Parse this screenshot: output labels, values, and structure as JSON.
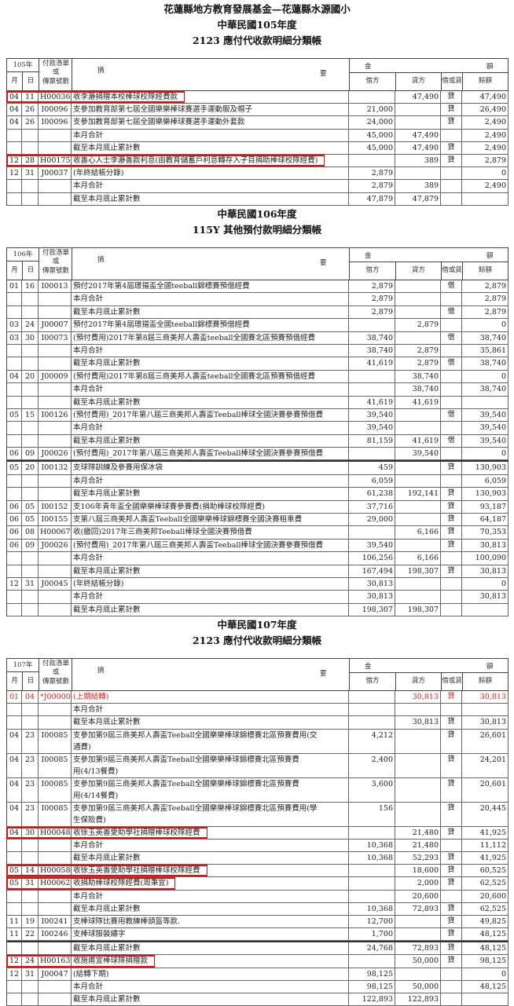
{
  "page_title": "花蓮縣地方教育發展基金—花蓮縣水源國小",
  "highlight_color": "#e01010",
  "header": {
    "voucher_line1": "付款憑單",
    "voucher_line2": "或",
    "voucher_line3": "傳票號數",
    "month": "月",
    "day": "日",
    "desc_a": "摘",
    "desc_b": "要",
    "amount_a": "金",
    "amount_b": "額",
    "debit": "借方",
    "credit": "貸方",
    "dc": "借或貸",
    "balance": "餘額"
  },
  "sections": [
    {
      "year_title": "中華民國105年度",
      "ledger_title": "2123 應付代收款明細分類帳",
      "year_label": "105年",
      "rows": [
        {
          "m": "04",
          "d": "11",
          "v": "H00036",
          "desc": "收李瀞捐贈本校棒球校隊經費款",
          "debit": "",
          "credit": "47,490",
          "dc": "貸",
          "bal": "47,490",
          "hl": true
        },
        {
          "m": "04",
          "d": "26",
          "v": "I00096",
          "desc": "支參加教育部第七屆全國樂樂棒球賽選手運動服及帽子",
          "debit": "21,000",
          "credit": "",
          "dc": "貸",
          "bal": "26,490"
        },
        {
          "m": "04",
          "d": "26",
          "v": "I00096",
          "desc": "支參加教育部第七屆全國樂樂棒球賽選手運動外套款",
          "debit": "24,000",
          "credit": "",
          "dc": "貸",
          "bal": "2,490"
        },
        {
          "m": "",
          "d": "",
          "v": "",
          "desc": "本月合計",
          "debit": "45,000",
          "credit": "47,490",
          "dc": "",
          "bal": "2,490"
        },
        {
          "m": "",
          "d": "",
          "v": "",
          "desc": "截至本月底止累計數",
          "debit": "45,000",
          "credit": "47,490",
          "dc": "貸",
          "bal": "2,490"
        },
        {
          "m": "12",
          "d": "28",
          "v": "H00175",
          "desc": "收善心人士李瀞善款利息(由教育儲蓄戶利息轉存入子目捐助棒球校隊經費)",
          "debit": "",
          "credit": "389",
          "dc": "貸",
          "bal": "2,879",
          "hl": true
        },
        {
          "m": "12",
          "d": "31",
          "v": "J00037",
          "desc": "(年終結帳分錄)",
          "debit": "2,879",
          "credit": "",
          "dc": "",
          "bal": "0"
        },
        {
          "m": "",
          "d": "",
          "v": "",
          "desc": "本月合計",
          "debit": "2,879",
          "credit": "389",
          "dc": "",
          "bal": "2,490"
        },
        {
          "m": "",
          "d": "",
          "v": "",
          "desc": "截至本月底止累計數",
          "debit": "47,879",
          "credit": "47,879",
          "dc": "",
          "bal": ""
        }
      ]
    },
    {
      "year_title": "中華民國106年度",
      "ledger_title": "115Y 其他預付款明細分類帳",
      "year_label": "106年",
      "rows": [
        {
          "m": "01",
          "d": "16",
          "v": "I00013",
          "desc": "預付2017年第4屆璟揚盃全國teeball錦標賽預借經費",
          "debit": "2,879",
          "credit": "",
          "dc": "借",
          "bal": "2,879"
        },
        {
          "m": "",
          "d": "",
          "v": "",
          "desc": "本月合計",
          "debit": "2,879",
          "credit": "",
          "dc": "",
          "bal": "2,879"
        },
        {
          "m": "",
          "d": "",
          "v": "",
          "desc": "截至本月底止累計數",
          "debit": "2,879",
          "credit": "",
          "dc": "借",
          "bal": "2,879"
        },
        {
          "m": "03",
          "d": "24",
          "v": "J00007",
          "desc": "預付2017年第4屆璟揚盃全國teeball錦標賽預借經費",
          "debit": "",
          "credit": "2,879",
          "dc": "",
          "bal": "0"
        },
        {
          "m": "03",
          "d": "30",
          "v": "I00073",
          "desc": "(預付費用)2017年第8屆三商美邦人壽盃teeball全國賽北區預賽預借經費",
          "debit": "38,740",
          "credit": "",
          "dc": "借",
          "bal": "38,740"
        },
        {
          "m": "",
          "d": "",
          "v": "",
          "desc": "本月合計",
          "debit": "38,740",
          "credit": "2,879",
          "dc": "",
          "bal": "35,861"
        },
        {
          "m": "",
          "d": "",
          "v": "",
          "desc": "截至本月底止累計數",
          "debit": "41,619",
          "credit": "2,879",
          "dc": "借",
          "bal": "38,740"
        },
        {
          "m": "04",
          "d": "20",
          "v": "J00009",
          "desc": "(預付費用)2017年第8屆三商美邦人壽盃teeball全國賽北區預賽預借經費",
          "debit": "",
          "credit": "38,740",
          "dc": "",
          "bal": "0"
        },
        {
          "m": "",
          "d": "",
          "v": "",
          "desc": "本月合計",
          "debit": "",
          "credit": "38,740",
          "dc": "",
          "bal": "38,740"
        },
        {
          "m": "",
          "d": "",
          "v": "",
          "desc": "截至本月底止累計數",
          "debit": "41,619",
          "credit": "41,619",
          "dc": "",
          "bal": ""
        },
        {
          "m": "05",
          "d": "15",
          "v": "I00126",
          "desc": "(預付費用)_2017年第八屆三商美邦人壽盃Teeball棒球全國決賽參賽預借費",
          "debit": "39,540",
          "credit": "",
          "dc": "借",
          "bal": "39,540"
        },
        {
          "m": "",
          "d": "",
          "v": "",
          "desc": "本月合計",
          "debit": "39,540",
          "credit": "",
          "dc": "",
          "bal": "39,540"
        },
        {
          "m": "",
          "d": "",
          "v": "",
          "desc": "截至本月底止累計數",
          "debit": "81,159",
          "credit": "41,619",
          "dc": "借",
          "bal": "39,540"
        },
        {
          "m": "06",
          "d": "09",
          "v": "J00026",
          "desc": "(預付費用)_2017年第八屆三商美邦人壽盃Teeball棒球全國決賽參賽預借費",
          "debit": "",
          "credit": "39,540",
          "dc": "",
          "bal": "0"
        },
        {
          "m": "05",
          "d": "20",
          "v": "I00132",
          "desc": "支球隊訓練及參賽用保冰袋",
          "debit": "459",
          "credit": "",
          "dc": "貸",
          "bal": "130,903",
          "brk": true
        },
        {
          "m": "",
          "d": "",
          "v": "",
          "desc": "本月合計",
          "debit": "6,059",
          "credit": "",
          "dc": "",
          "bal": "6,059"
        },
        {
          "m": "",
          "d": "",
          "v": "",
          "desc": "截至本月底止累計數",
          "debit": "61,238",
          "credit": "192,141",
          "dc": "貸",
          "bal": "130,903"
        },
        {
          "m": "06",
          "d": "05",
          "v": "I00152",
          "desc": "支106年青年盃全國樂樂棒球賽參賽費(捐助棒球校隊經費)",
          "debit": "37,716",
          "credit": "",
          "dc": "貸",
          "bal": "93,187"
        },
        {
          "m": "06",
          "d": "05",
          "v": "I00155",
          "desc": "支第八屆三商美邦人壽盃Teeball全國樂樂棒球錦標賽全國決賽租車費",
          "debit": "29,000",
          "credit": "",
          "dc": "貸",
          "bal": "64,187"
        },
        {
          "m": "06",
          "d": "08",
          "v": "H00067",
          "desc": "收(繳回)2017年三商美邦Teeball棒球全國決賽預借費",
          "debit": "",
          "credit": "6,166",
          "dc": "貸",
          "bal": "70,353"
        },
        {
          "m": "06",
          "d": "09",
          "v": "J00026",
          "desc": "(預付費用)_2017年第八屆三商美邦人壽盃Teeball棒球全國決賽參賽預借費",
          "debit": "39,540",
          "credit": "",
          "dc": "貸",
          "bal": "30,813"
        },
        {
          "m": "",
          "d": "",
          "v": "",
          "desc": "本月合計",
          "debit": "106,256",
          "credit": "6,166",
          "dc": "",
          "bal": "100,090"
        },
        {
          "m": "",
          "d": "",
          "v": "",
          "desc": "截至本月底止累計數",
          "debit": "167,494",
          "credit": "198,307",
          "dc": "貸",
          "bal": "30,813"
        },
        {
          "m": "12",
          "d": "31",
          "v": "J00045",
          "desc": "(年終結帳分錄)",
          "debit": "30,813",
          "credit": "",
          "dc": "",
          "bal": "0"
        },
        {
          "m": "",
          "d": "",
          "v": "",
          "desc": "本月合計",
          "debit": "30,813",
          "credit": "",
          "dc": "",
          "bal": "30,813"
        },
        {
          "m": "",
          "d": "",
          "v": "",
          "desc": "截至本月底止累計數",
          "debit": "198,307",
          "credit": "198,307",
          "dc": "",
          "bal": ""
        }
      ]
    },
    {
      "year_title": "中華民國107年度",
      "ledger_title": "2123 應付代收款明細分類帳",
      "year_label": "107年",
      "rows": [
        {
          "m": "01",
          "d": "04",
          "v": "*J00000",
          "desc": "(上期結轉)",
          "debit": "",
          "credit": "30,813",
          "dc": "貸",
          "bal": "30,813",
          "red": true
        },
        {
          "m": "",
          "d": "",
          "v": "",
          "desc": "本月合計",
          "debit": "",
          "credit": "",
          "dc": "",
          "bal": ""
        },
        {
          "m": "",
          "d": "",
          "v": "",
          "desc": "截至本月底止累計數",
          "debit": "",
          "credit": "30,813",
          "dc": "貸",
          "bal": "30,813"
        },
        {
          "m": "04",
          "d": "23",
          "v": "I00085",
          "desc": "支參加第9屆三商美邦人壽盃Teeball全國樂樂棒球錦標賽北區預賽費用(交\n通費)",
          "debit": "4,212",
          "credit": "",
          "dc": "貸",
          "bal": "26,601"
        },
        {
          "m": "04",
          "d": "23",
          "v": "I00085",
          "desc": "支參加第9屆三商美邦人壽盃Teeball全國樂樂棒球錦標賽北區預賽費\n用(4/13餐費)",
          "debit": "2,400",
          "credit": "",
          "dc": "貸",
          "bal": "24,201"
        },
        {
          "m": "04",
          "d": "23",
          "v": "I00085",
          "desc": "支參加第9屆三商美邦人壽盃Teeball全國樂樂棒球錦標賽北區預賽費\n用(4/14餐費)",
          "debit": "3,600",
          "credit": "",
          "dc": "貸",
          "bal": "20,601"
        },
        {
          "m": "04",
          "d": "23",
          "v": "I00085",
          "desc": "支參加第9屆三商美邦人壽盃Teeball全國樂樂棒球錦標賽北區預賽費用(學\n生保險費)",
          "debit": "156",
          "credit": "",
          "dc": "貸",
          "bal": "20,445"
        },
        {
          "m": "04",
          "d": "30",
          "v": "H00048",
          "desc": "收徐玉英善愛助學社捐贈棒球校隊經費",
          "debit": "",
          "credit": "21,480",
          "dc": "貸",
          "bal": "41,925",
          "hl": true
        },
        {
          "m": "",
          "d": "",
          "v": "",
          "desc": "本月合計",
          "debit": "10,368",
          "credit": "21,480",
          "dc": "",
          "bal": "11,112"
        },
        {
          "m": "",
          "d": "",
          "v": "",
          "desc": "截至本月底止累計數",
          "debit": "10,368",
          "credit": "52,293",
          "dc": "貸",
          "bal": "41,925"
        },
        {
          "m": "05",
          "d": "14",
          "v": "H00058",
          "desc": "收徐玉英善愛助學社捐贈棒球校隊經費",
          "debit": "",
          "credit": "18,600",
          "dc": "貸",
          "bal": "60,525",
          "hl": true
        },
        {
          "m": "05",
          "d": "31",
          "v": "H00062",
          "desc": "收捐助棒球校隊經費(周秉宜)",
          "debit": "",
          "credit": "2,000",
          "dc": "貸",
          "bal": "62,525",
          "hl": true
        },
        {
          "m": "",
          "d": "",
          "v": "",
          "desc": "本月合計",
          "debit": "",
          "credit": "20,600",
          "dc": "",
          "bal": "20,600"
        },
        {
          "m": "",
          "d": "",
          "v": "",
          "desc": "截至本月底止累計數",
          "debit": "10,368",
          "credit": "72,893",
          "dc": "貸",
          "bal": "62,525"
        },
        {
          "m": "11",
          "d": "19",
          "v": "I00241",
          "desc": "支棒球隊比賽用教練棒頭盔等款.",
          "debit": "12,700",
          "credit": "",
          "dc": "貸",
          "bal": "49,825"
        },
        {
          "m": "11",
          "d": "22",
          "v": "I00246",
          "desc": "支棒球服裝繡字",
          "debit": "1,700",
          "credit": "",
          "dc": "貸",
          "bal": "48,125"
        },
        {
          "m": "",
          "d": "",
          "v": "",
          "desc": "截至本月底止累計數",
          "debit": "24,768",
          "credit": "72,893",
          "dc": "貸",
          "bal": "48,125",
          "brk": true
        },
        {
          "m": "12",
          "d": "24",
          "v": "H00163",
          "desc": "收施甫宜棒球隊捐贈款",
          "debit": "",
          "credit": "50,000",
          "dc": "貸",
          "bal": "98,125",
          "hl": true
        },
        {
          "m": "12",
          "d": "31",
          "v": "J00047",
          "desc": "(結轉下期)",
          "debit": "98,125",
          "credit": "",
          "dc": "",
          "bal": "0"
        },
        {
          "m": "",
          "d": "",
          "v": "",
          "desc": "本月合計",
          "debit": "98,125",
          "credit": "50,000",
          "dc": "",
          "bal": "48,125"
        },
        {
          "m": "",
          "d": "",
          "v": "",
          "desc": "截至本月底止累計數",
          "debit": "122,893",
          "credit": "122,893",
          "dc": "",
          "bal": ""
        }
      ]
    }
  ]
}
